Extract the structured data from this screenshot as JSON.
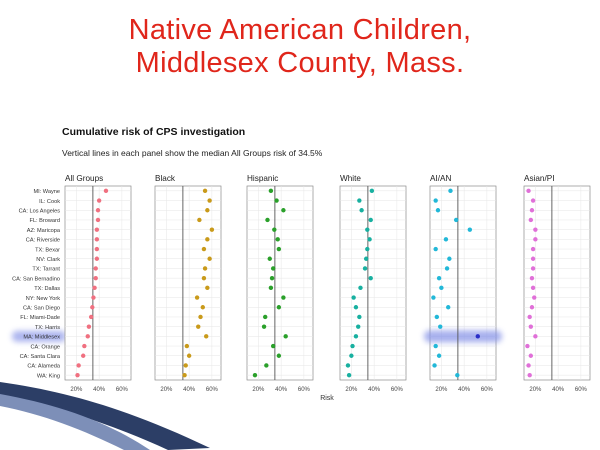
{
  "slide": {
    "title_line1": "Native American Children,",
    "title_line2": "Middlesex County, Mass."
  },
  "chart_data": {
    "type": "scatter",
    "title": "Cumulative risk of CPS investigation",
    "subtitle": "Vertical lines in each panel show the median All Groups risk of 34.5%",
    "xlabel": "Risk",
    "ylabel": "",
    "xlim": [
      10,
      68
    ],
    "x_ticks": [
      "20%",
      "40%",
      "60%"
    ],
    "x_tick_values": [
      20,
      40,
      60
    ],
    "median_line": 34.5,
    "grid": true,
    "legend": "none",
    "highlight": {
      "category": "MA: Middlesex",
      "panel": "AI/AN",
      "color": "#8a96e8"
    },
    "categories": [
      "MI: Wayne",
      "IL: Cook",
      "CA: Los Angeles",
      "FL: Broward",
      "AZ: Maricopa",
      "CA: Riverside",
      "TX: Bexar",
      "NV: Clark",
      "TX: Tarrant",
      "CA: San Bernadino",
      "TX: Dallas",
      "NY: New York",
      "CA: San Diego",
      "FL: Miami-Dade",
      "TX: Harris",
      "MA: Middlesex",
      "CA: Orange",
      "CA: Santa Clara",
      "CA: Alameda",
      "WA: King"
    ],
    "series": [
      {
        "name": "All Groups",
        "color": "#f07080",
        "values": [
          46,
          40,
          39,
          39,
          38,
          38,
          38,
          38,
          37,
          37,
          36,
          35,
          34,
          33,
          31,
          30,
          27,
          26,
          22,
          21
        ]
      },
      {
        "name": "Black",
        "color": "#c99a1a",
        "values": [
          54,
          58,
          56,
          49,
          60,
          56,
          53,
          58,
          54,
          53,
          56,
          47,
          52,
          50,
          48,
          55,
          38,
          40,
          37,
          36
        ]
      },
      {
        "name": "Hispanic",
        "color": "#2aa02a",
        "values": [
          31,
          36,
          42,
          28,
          34,
          37,
          38,
          30,
          33,
          32,
          31,
          42,
          38,
          26,
          25,
          44,
          33,
          38,
          27,
          17
        ]
      },
      {
        "name": "White",
        "color": "#18b0a0",
        "values": [
          38,
          27,
          29,
          37,
          34,
          36,
          34,
          33,
          32,
          37,
          28,
          22,
          24,
          27,
          26,
          24,
          21,
          20,
          17,
          18
        ]
      },
      {
        "name": "AI/AN",
        "color": "#22b8d8",
        "values": [
          28,
          15,
          17,
          33,
          45,
          24,
          15,
          27,
          25,
          18,
          20,
          13,
          26,
          16,
          19,
          52,
          15,
          18,
          14,
          34
        ]
      },
      {
        "name": "Asian/PI",
        "color": "#e070d8",
        "values": [
          14,
          18,
          17,
          16,
          20,
          20,
          18,
          18,
          18,
          17,
          18,
          19,
          17,
          15,
          16,
          20,
          13,
          16,
          14,
          15
        ]
      }
    ]
  }
}
